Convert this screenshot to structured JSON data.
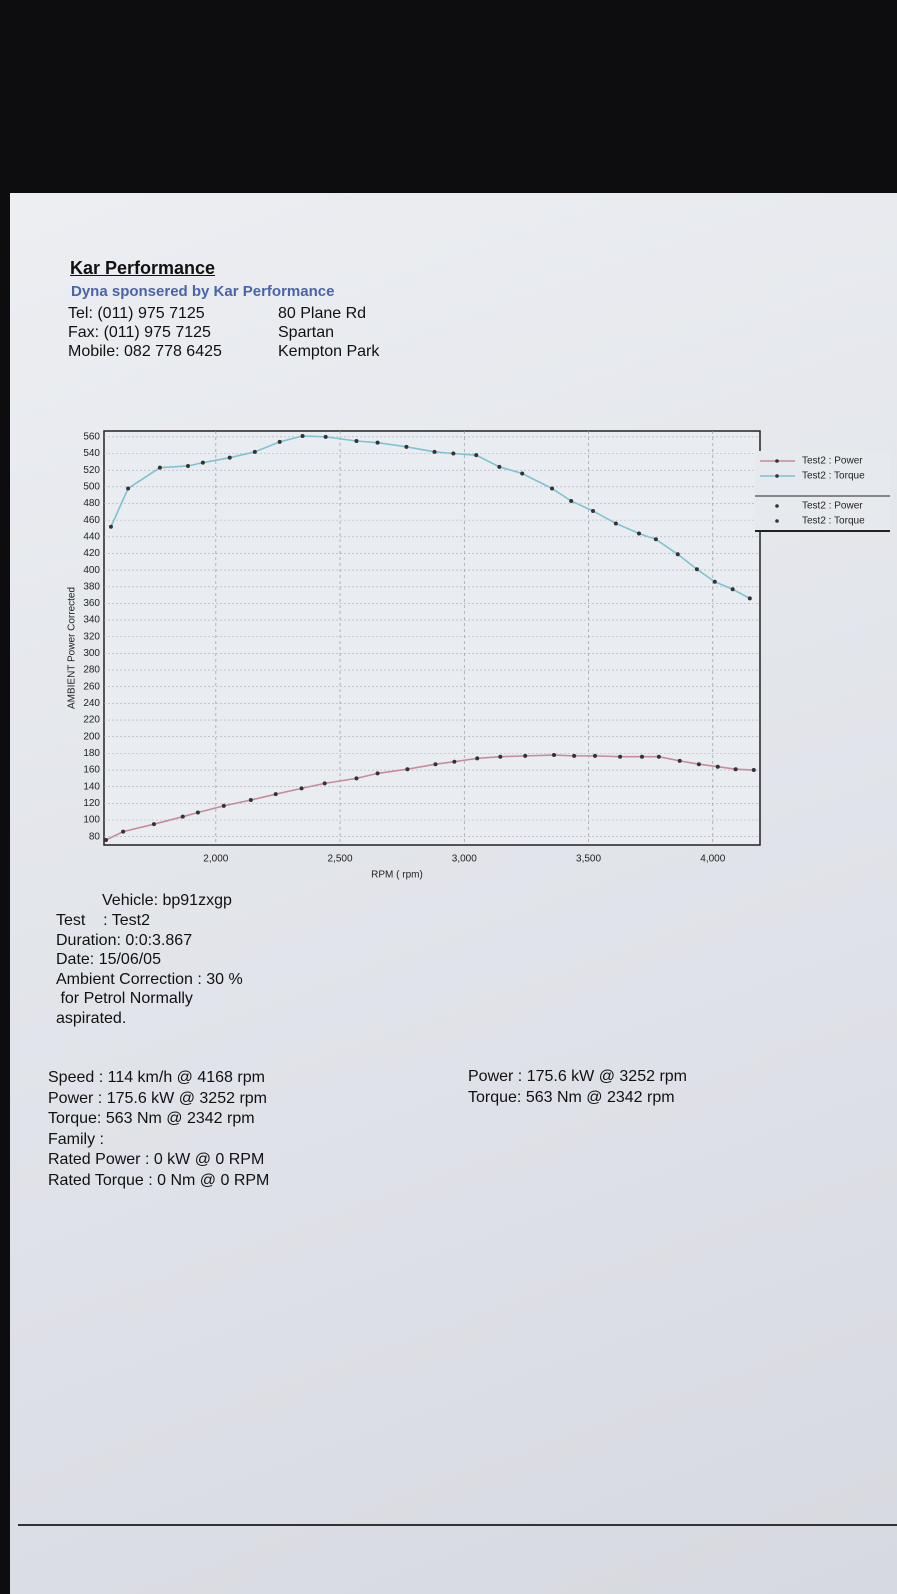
{
  "header": {
    "title": "Kar Performance",
    "subtitle": "Dyna sponsered by Kar Performance",
    "contact": [
      [
        "Tel: (011) 975 7125",
        "80 Plane Rd"
      ],
      [
        "Fax: (011) 975 7125",
        "Spartan"
      ],
      [
        "Mobile: 082 778 6425",
        "Kempton Park"
      ]
    ]
  },
  "chart_data": {
    "type": "line",
    "x_label": "RPM ( rpm)",
    "y_label": "AMBIENT Power Corrected",
    "xlim": [
      1550,
      4190
    ],
    "ylim": [
      70,
      567
    ],
    "xticks": [
      {
        "value": 2000,
        "label": "2,000"
      },
      {
        "value": 2500,
        "label": "2,500"
      },
      {
        "value": 3000,
        "label": "3,000"
      },
      {
        "value": 3500,
        "label": "3,500"
      },
      {
        "value": 4000,
        "label": "4,000"
      }
    ],
    "yticks": [
      80,
      100,
      120,
      140,
      160,
      180,
      200,
      220,
      240,
      260,
      280,
      300,
      320,
      340,
      360,
      380,
      400,
      420,
      440,
      460,
      480,
      500,
      520,
      540,
      560
    ],
    "grid": true,
    "series": [
      {
        "name": "Test2 : Power",
        "color": "#c88a9c",
        "x": [
          1558,
          1627,
          1751,
          1867,
          1928,
          2032,
          2141,
          2241,
          2345,
          2438,
          2566,
          2651,
          2771,
          2884,
          2960,
          3052,
          3145,
          3245,
          3361,
          3442,
          3526,
          3627,
          3715,
          3783,
          3867,
          3944,
          4020,
          4092,
          4165
        ],
        "values": [
          76,
          86,
          95,
          104,
          109,
          117,
          124,
          131,
          138,
          144,
          150,
          156,
          161,
          167,
          170,
          174,
          176,
          177,
          178,
          177,
          177,
          176,
          176,
          176,
          171,
          167,
          164,
          161,
          160
        ]
      },
      {
        "name": "Test2 : Torque",
        "color": "#7fc3d2",
        "x": [
          1578,
          1647,
          1775,
          1888,
          1948,
          2056,
          2157,
          2257,
          2349,
          2442,
          2566,
          2651,
          2767,
          2880,
          2956,
          3048,
          3141,
          3233,
          3353,
          3430,
          3518,
          3610,
          3703,
          3771,
          3859,
          3936,
          4008,
          4080,
          4149
        ],
        "values": [
          452,
          498,
          523,
          525,
          529,
          535,
          542,
          554,
          561,
          560,
          555,
          553,
          548,
          542,
          540,
          538,
          524,
          516,
          498,
          483,
          471,
          456,
          444,
          437,
          419,
          401,
          386,
          377,
          366
        ]
      }
    ],
    "marker_legend": [
      "Test2 : Power",
      "Test2 : Torque"
    ]
  },
  "test_info": [
    "Vehicle: bp91zxgp",
    "Test    : Test2",
    "Duration: 0:0:3.867",
    "Date: 15/06/05",
    "Ambient Correction : 30 %",
    " for Petrol Normally",
    "aspirated."
  ],
  "results_left": [
    "Speed : 114 km/h @ 4168 rpm",
    "Power : 175.6 kW @ 3252 rpm",
    "Torque: 563 Nm @ 2342 rpm",
    "Family :",
    "Rated Power : 0 kW @ 0 RPM",
    "Rated Torque : 0 Nm @ 0 RPM"
  ],
  "results_right": [
    "Power : 175.6 kW @ 3252 rpm",
    "Torque: 563 Nm @ 2342 rpm"
  ]
}
